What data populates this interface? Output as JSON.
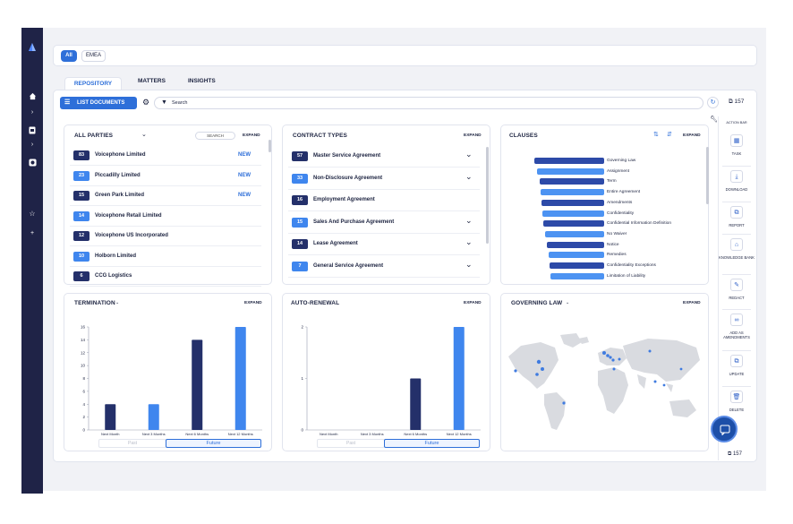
{
  "region_filter": {
    "all": "All",
    "emea": "EMEA"
  },
  "tabs": [
    "REPOSITORY",
    "MATTERS",
    "INSIGHTS"
  ],
  "toolbar": {
    "list_documents": "LIST DOCUMENTS",
    "search_placeholder": "Search",
    "count": "157"
  },
  "all_parties": {
    "title": "ALL PARTIES",
    "search_label": "SEARCH",
    "expand": "EXPAND",
    "rows": [
      {
        "count": "83",
        "name": "Voicephone Limited",
        "tag": "NEW"
      },
      {
        "count": "23",
        "name": "Piccadilly Limited",
        "tag": "NEW"
      },
      {
        "count": "15",
        "name": "Green Park Limited",
        "tag": "NEW"
      },
      {
        "count": "14",
        "name": "Voicephone Retail Limited",
        "tag": ""
      },
      {
        "count": "12",
        "name": "Voicephone US Incorporated",
        "tag": ""
      },
      {
        "count": "10",
        "name": "Holborn Limited",
        "tag": ""
      },
      {
        "count": "6",
        "name": "CCG Logistics",
        "tag": ""
      }
    ]
  },
  "contract_types": {
    "title": "CONTRACT TYPES",
    "expand": "EXPAND",
    "rows": [
      {
        "count": "57",
        "name": "Master Service Agreement"
      },
      {
        "count": "33",
        "name": "Non-Disclosure Agreement"
      },
      {
        "count": "16",
        "name": "Employment Agreement"
      },
      {
        "count": "15",
        "name": "Sales And Purchase Agreement"
      },
      {
        "count": "14",
        "name": "Lease Agreement"
      },
      {
        "count": "7",
        "name": "General Service Agreement"
      }
    ]
  },
  "clauses": {
    "title": "CLAUSES",
    "expand": "EXPAND",
    "items": [
      "Governing Law",
      "Assignment",
      "Term",
      "Entire Agreement",
      "Amendments",
      "Confidentiality",
      "Confidential Information Definition",
      "No Waiver",
      "Notice",
      "Remedies",
      "Confidentiality Exceptions",
      "Limitation of Liability"
    ]
  },
  "termination": {
    "title": "TERMINATION",
    "expand": "EXPAND",
    "past": "Past",
    "future": "Future"
  },
  "auto_renewal": {
    "title": "AUTO-RENEWAL",
    "expand": "EXPAND",
    "past": "Past",
    "future": "Future"
  },
  "governing_law": {
    "title": "GOVERNING LAW",
    "expand": "EXPAND"
  },
  "action_bar": {
    "title": "ACTION BAR",
    "items": [
      {
        "label": "TASK",
        "icon": "task-icon"
      },
      {
        "label": "DOWNLOAD",
        "icon": "download-icon"
      },
      {
        "label": "REPORT",
        "icon": "report-icon"
      },
      {
        "label": "KNOWLEDGE BANK",
        "icon": "bank-icon"
      },
      {
        "label": "REDACT",
        "icon": "redact-icon"
      },
      {
        "label": "ADD AS AMENDMENTS",
        "icon": "link-icon"
      },
      {
        "label": "UPDATE",
        "icon": "update-icon"
      },
      {
        "label": "DELETE",
        "icon": "delete-icon"
      }
    ],
    "count": "157"
  },
  "colors": {
    "navy": "#1f2347",
    "accent": "#2e6fd9",
    "bar_dark": "#24306a",
    "bar_light": "#3f86ee"
  },
  "chart_data": [
    {
      "type": "bar",
      "title": "TERMINATION",
      "categories": [
        "Next Month",
        "Next 3 Months",
        "Next 6 Months",
        "Next 12 Months"
      ],
      "values": [
        4,
        4,
        14,
        16
      ],
      "ylim": [
        0,
        16
      ],
      "yticks": [
        0,
        2,
        4,
        6,
        8,
        10,
        12,
        14,
        16
      ],
      "xlabel": "",
      "ylabel": ""
    },
    {
      "type": "bar",
      "title": "AUTO-RENEWAL",
      "categories": [
        "Next Month",
        "Next 3 Months",
        "Next 6 Months",
        "Next 12 Months"
      ],
      "values": [
        0,
        0,
        1,
        2
      ],
      "ylim": [
        0,
        2
      ],
      "yticks": [
        0,
        1,
        2
      ],
      "xlabel": "",
      "ylabel": ""
    },
    {
      "type": "bar",
      "title": "CLAUSES",
      "categories": [
        "Governing Law",
        "Assignment",
        "Term",
        "Entire Agreement",
        "Amendments",
        "Confidentiality",
        "Confidential Information Definition",
        "No Waiver",
        "Notice",
        "Remedies",
        "Confidentiality Exceptions",
        "Limitation of Liability"
      ],
      "values": [
        78,
        75,
        72,
        71,
        70,
        69,
        68,
        66,
        64,
        62,
        61,
        60
      ],
      "xlabel": "",
      "ylabel": ""
    }
  ]
}
